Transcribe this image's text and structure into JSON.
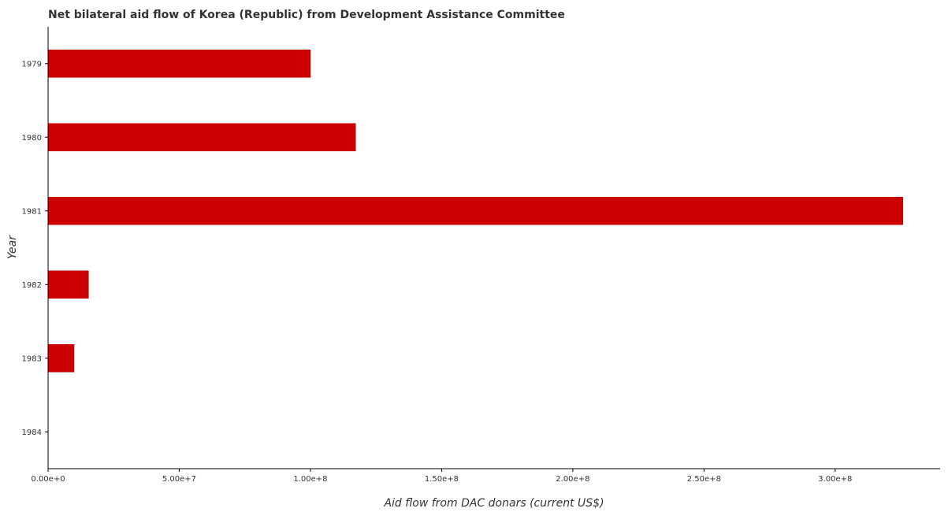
{
  "chart_data": {
    "type": "bar",
    "orientation": "horizontal",
    "title": "Net bilateral aid flow of Korea (Republic) from Development Assistance Committee",
    "xlabel": "Aid flow from DAC donars (current US$)",
    "ylabel": "Year",
    "categories": [
      "1979",
      "1980",
      "1981",
      "1982",
      "1983",
      "1984"
    ],
    "values": [
      100100000,
      117300000,
      325900000,
      15500000,
      10000000,
      0
    ],
    "xlim": [
      0,
      340000000
    ],
    "xticks": [
      0,
      50000000,
      100000000,
      150000000,
      200000000,
      250000000,
      300000000
    ],
    "xtick_labels": [
      "0.00e+0",
      "5.00e+7",
      "1.00e+8",
      "1.50e+8",
      "2.00e+8",
      "2.50e+8",
      "3.00e+8"
    ],
    "bar_color": "#cc0000",
    "grid": false,
    "legend": "none"
  }
}
